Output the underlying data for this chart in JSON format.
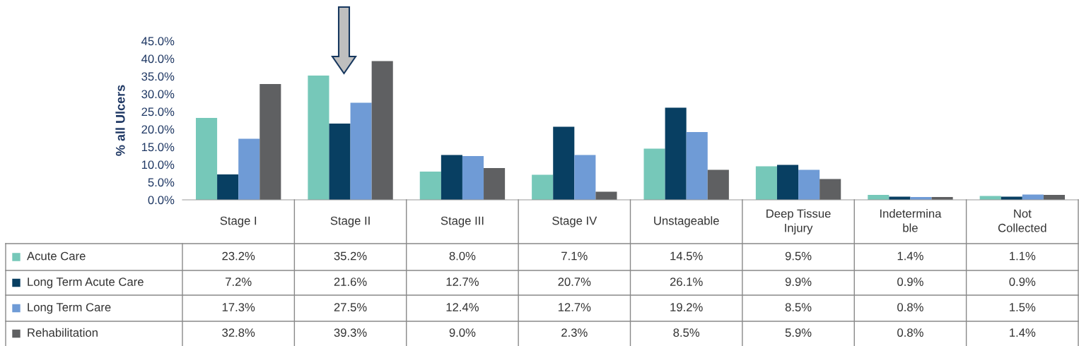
{
  "chart_data": {
    "type": "bar",
    "ylabel": "% all Ulcers",
    "categories": [
      "Stage I",
      "Stage II",
      "Stage III",
      "Stage IV",
      "Unstageable",
      "Deep Tissue\nInjury",
      "Indetermina\nble",
      "Not\nCollected"
    ],
    "series": [
      {
        "name": "Acute Care",
        "color": "#76c8b9",
        "values": [
          23.2,
          35.2,
          8.0,
          7.1,
          14.5,
          9.5,
          1.4,
          1.1
        ],
        "value_labels": [
          "23.2%",
          "35.2%",
          "8.0%",
          "7.1%",
          "14.5%",
          "9.5%",
          "1.4%",
          "1.1%"
        ]
      },
      {
        "name": "Long Term Acute Care",
        "color": "#083f62",
        "values": [
          7.2,
          21.6,
          12.7,
          20.7,
          26.1,
          9.9,
          0.9,
          0.9
        ],
        "value_labels": [
          "7.2%",
          "21.6%",
          "12.7%",
          "20.7%",
          "26.1%",
          "9.9%",
          "0.9%",
          "0.9%"
        ]
      },
      {
        "name": "Long Term Care",
        "color": "#6f9bd6",
        "values": [
          17.3,
          27.5,
          12.4,
          12.7,
          19.2,
          8.5,
          0.8,
          1.5
        ],
        "value_labels": [
          "17.3%",
          "27.5%",
          "12.4%",
          "12.7%",
          "19.2%",
          "8.5%",
          "0.8%",
          "1.5%"
        ]
      },
      {
        "name": "Rehabilitation",
        "color": "#5f6062",
        "values": [
          32.8,
          39.3,
          9.0,
          2.3,
          8.5,
          5.9,
          0.8,
          1.4
        ],
        "value_labels": [
          "32.8%",
          "39.3%",
          "9.0%",
          "2.3%",
          "8.5%",
          "5.9%",
          "0.8%",
          "1.4%"
        ]
      }
    ],
    "ylim": [
      0,
      45
    ],
    "yticks": [
      {
        "value": 0,
        "label": "0.0%"
      },
      {
        "value": 5,
        "label": "5.0%"
      },
      {
        "value": 10,
        "label": "10.0%"
      },
      {
        "value": 15,
        "label": "15.0%"
      },
      {
        "value": 20,
        "label": "20.0%"
      },
      {
        "value": 25,
        "label": "25.0%"
      },
      {
        "value": 30,
        "label": "30.0%"
      },
      {
        "value": 35,
        "label": "35.0%"
      },
      {
        "value": 40,
        "label": "40.0%"
      },
      {
        "value": 45,
        "label": "45.0%"
      }
    ],
    "legend": "bottom"
  }
}
